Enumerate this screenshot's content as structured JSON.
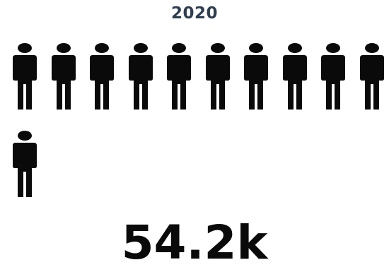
{
  "year_label": "2020",
  "total_label": "54.2k",
  "colors": {
    "year": "#2f3e51",
    "icon": "#0a0a0a",
    "total": "#0a0a0a"
  },
  "icon_name": "person-icon",
  "chart_data": {
    "type": "pictograph",
    "title": "2020",
    "icon_count": 11,
    "total": 54200,
    "total_label": "54.2k"
  }
}
